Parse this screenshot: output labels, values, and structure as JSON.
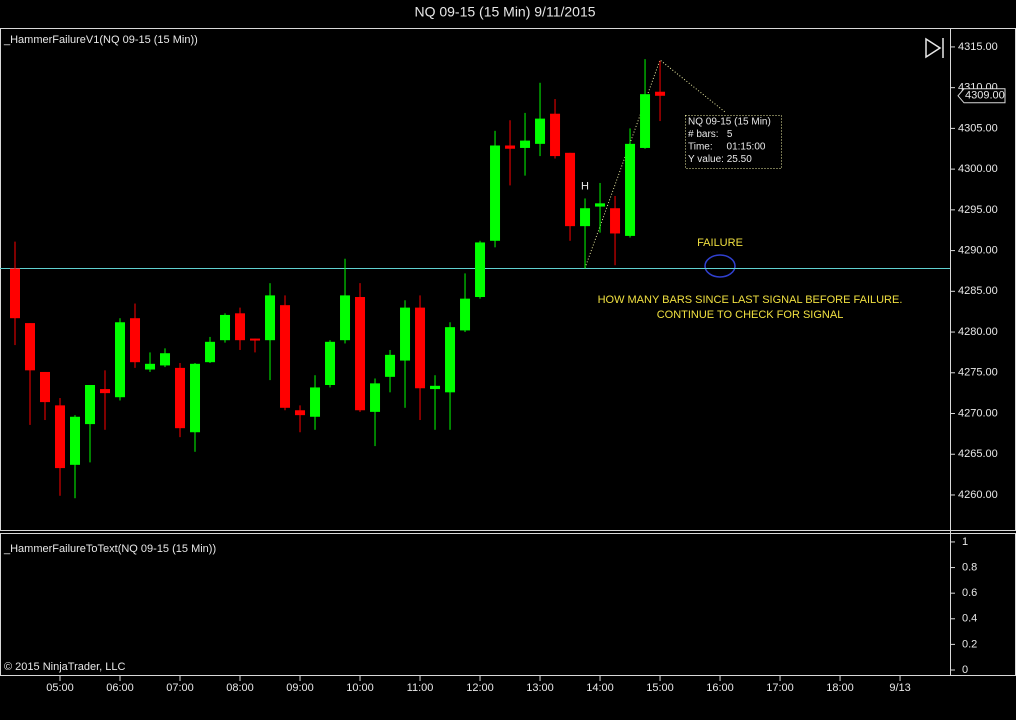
{
  "chart_data": [
    {
      "type": "candlestick",
      "title": "NQ 09-15 (15 Min)  9/11/2015",
      "indicator_label": "_HammerFailureV1(NQ 09-15 (15 Min))",
      "up_color": "#00ff00",
      "down_color": "#ff0000",
      "open": [
        4287.8,
        4281.1,
        4275.1,
        4271.0,
        4263.7,
        4268.7,
        4273.0,
        4272.0,
        4281.7,
        4275.4,
        4275.9,
        4275.6,
        4267.7,
        4276.3,
        4279.0,
        4282.3,
        4279.2,
        4279.0,
        4283.3,
        4270.4,
        4269.6,
        4273.5,
        4279.0,
        4284.3,
        4270.2,
        4274.5,
        4276.5,
        4283.0,
        4273.0,
        4272.6,
        4280.2,
        4284.3,
        4291.2,
        4302.9,
        4302.6,
        4303.1,
        4306.8,
        4302.0,
        4293.0,
        4295.4,
        4295.2,
        4291.8,
        4302.6,
        4309.5
      ],
      "high": [
        4291.1,
        4281.1,
        4275.1,
        4271.9,
        4269.8,
        4273.5,
        4275.3,
        4281.7,
        4283.5,
        4277.5,
        4278.0,
        4276.2,
        4276.2,
        4279.4,
        4282.3,
        4283.0,
        4279.2,
        4286.0,
        4284.5,
        4271.0,
        4274.7,
        4279.0,
        4289.0,
        4286.0,
        4274.3,
        4277.8,
        4283.9,
        4284.5,
        4274.7,
        4281.2,
        4287.2,
        4291.2,
        4304.7,
        4306.0,
        4306.9,
        4310.6,
        4308.6,
        4302.0,
        4296.4,
        4298.3,
        4296.7,
        4305.0,
        4313.5,
        4313.3
      ],
      "low": [
        4278.4,
        4268.6,
        4269.2,
        4259.9,
        4259.6,
        4264.0,
        4268.0,
        4271.6,
        4275.6,
        4275.1,
        4275.7,
        4267.1,
        4265.3,
        4276.2,
        4278.7,
        4277.8,
        4277.5,
        4274.1,
        4270.4,
        4267.7,
        4268.0,
        4273.2,
        4278.6,
        4270.2,
        4266.0,
        4272.6,
        4270.7,
        4269.2,
        4268.0,
        4268.0,
        4280.0,
        4284.1,
        4290.4,
        4298.0,
        4299.2,
        4301.6,
        4301.3,
        4291.2,
        4287.8,
        4292.2,
        4288.2,
        4291.6,
        4302.5,
        4305.9
      ],
      "close": [
        4281.7,
        4275.3,
        4271.4,
        4263.3,
        4269.6,
        4273.5,
        4272.5,
        4281.2,
        4276.3,
        4276.1,
        4277.4,
        4268.2,
        4276.1,
        4278.8,
        4282.1,
        4279.0,
        4279.0,
        4284.5,
        4270.7,
        4269.8,
        4273.2,
        4278.8,
        4284.5,
        4270.4,
        4273.7,
        4277.2,
        4283.0,
        4273.1,
        4273.4,
        4280.6,
        4284.1,
        4291.0,
        4302.9,
        4302.5,
        4303.5,
        4306.2,
        4301.6,
        4293.0,
        4295.2,
        4295.8,
        4292.1,
        4303.1,
        4309.2,
        4309.0
      ],
      "ylim": [
        4255.7,
        4317.2
      ],
      "yticks": [
        {
          "value": 4260,
          "label": "4260.00"
        },
        {
          "value": 4265,
          "label": "4265.00"
        },
        {
          "value": 4270,
          "label": "4270.00"
        },
        {
          "value": 4275,
          "label": "4275.00"
        },
        {
          "value": 4280,
          "label": "4280.00"
        },
        {
          "value": 4285,
          "label": "4285.00"
        },
        {
          "value": 4290,
          "label": "4290.00"
        },
        {
          "value": 4295,
          "label": "4295.00"
        },
        {
          "value": 4300,
          "label": "4300.00"
        },
        {
          "value": 4305,
          "label": "4305.00"
        },
        {
          "value": 4310,
          "label": "4310.00"
        },
        {
          "value": 4315,
          "label": "4315.00"
        }
      ],
      "xlim": [
        -1,
        62.33
      ],
      "xticks": [
        {
          "value": 3,
          "label": "05:00"
        },
        {
          "value": 7,
          "label": "06:00"
        },
        {
          "value": 11,
          "label": "07:00"
        },
        {
          "value": 15,
          "label": "08:00"
        },
        {
          "value": 19,
          "label": "09:00"
        },
        {
          "value": 23,
          "label": "10:00"
        },
        {
          "value": 27,
          "label": "11:00"
        },
        {
          "value": 31,
          "label": "12:00"
        },
        {
          "value": 35,
          "label": "13:00"
        },
        {
          "value": 39,
          "label": "14:00"
        },
        {
          "value": 43,
          "label": "15:00"
        },
        {
          "value": 47,
          "label": "16:00"
        },
        {
          "value": 51,
          "label": "17:00"
        },
        {
          "value": 55,
          "label": "18:00"
        },
        {
          "value": 59,
          "label": "9/13"
        }
      ],
      "last_price": {
        "value": 4309,
        "label": "4309.00"
      },
      "hline": 4287.8,
      "hline_color": "#5fd0d0",
      "hammer_label": "H",
      "failure_label": "FAILURE",
      "note": [
        "HOW MANY BARS SINCE LAST SIGNAL BEFORE FAILURE.",
        "CONTINUE TO CHECK FOR SIGNAL"
      ],
      "tooltip": [
        "NQ 09-15 (15 Min)",
        "# bars:   5",
        "Time:     01:15:00",
        "Y value: 25.50"
      ]
    },
    {
      "type": "indicator",
      "indicator_label": "_HammerFailureToText(NQ 09-15 (15 Min))",
      "ylim": [
        -0.039,
        1.062
      ],
      "yticks": [
        0,
        0.2,
        0.4,
        0.6,
        0.8,
        1
      ]
    }
  ],
  "copyright": "© 2015 NinjaTrader, LLC"
}
